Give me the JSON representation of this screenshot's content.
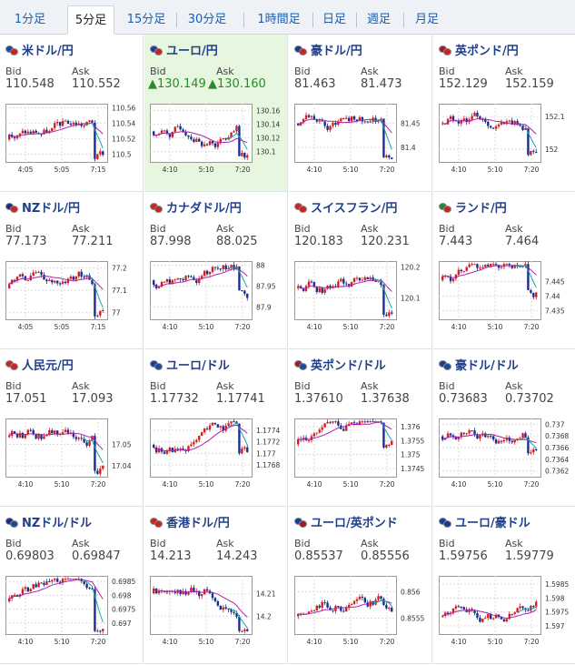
{
  "tabs": [
    "1分足",
    "5分足",
    "15分足",
    "30分足",
    "1時間足",
    "日足",
    "週足",
    "月足"
  ],
  "active_tab": 1,
  "labels": {
    "bid": "Bid",
    "ask": "Ask"
  },
  "up_arrow": "▲",
  "highlight_color": "#e6f6df",
  "pairs": [
    {
      "name": "米ドル/円",
      "flags": [
        "#1a4aa0",
        "#cc2222"
      ],
      "bid": "110.548",
      "ask": "110.552",
      "ticks_x": [
        "4:05",
        "5:05",
        "7:15"
      ],
      "ticks_y": [
        "110.56",
        "110.54",
        "110.52",
        "110.5"
      ],
      "y_min": 110.49,
      "y_max": 110.565,
      "tick_y_values": [
        110.56,
        110.54,
        110.52,
        110.5
      ],
      "seed": 3,
      "drop": 0.95
    },
    {
      "name": "ユーロ/円",
      "flags": [
        "#1a3aa0",
        "#cc2222"
      ],
      "bid": "130.149",
      "ask": "130.160",
      "up": true,
      "ticks_x": [
        "4:10",
        "5:10",
        "7:20"
      ],
      "ticks_y": [
        "130.16",
        "130.14",
        "130.12",
        "130.1"
      ],
      "y_min": 130.085,
      "y_max": 130.17,
      "tick_y_values": [
        130.16,
        130.14,
        130.12,
        130.1
      ],
      "seed": 7,
      "drop": 0.9
    },
    {
      "name": "豪ドル/円",
      "flags": [
        "#1a3a90",
        "#cc2222"
      ],
      "bid": "81.463",
      "ask": "81.473",
      "ticks_x": [
        "4:10",
        "5:10",
        "7:20"
      ],
      "ticks_y": [
        "81.45",
        "81.4"
      ],
      "y_min": 81.37,
      "y_max": 81.49,
      "tick_y_values": [
        81.45,
        81.4
      ],
      "seed": 11,
      "drop": 0.92
    },
    {
      "name": "英ポンド/円",
      "flags": [
        "#a01a2a",
        "#cc2222"
      ],
      "bid": "152.129",
      "ask": "152.159",
      "ticks_x": [
        "4:10",
        "5:10",
        "7:20"
      ],
      "ticks_y": [
        "152.1",
        "152"
      ],
      "y_min": 151.96,
      "y_max": 152.14,
      "tick_y_values": [
        152.1,
        152
      ],
      "seed": 5,
      "drop": 0.88
    },
    {
      "name": "NZドル/円",
      "flags": [
        "#1a2a80",
        "#cc2222"
      ],
      "bid": "77.173",
      "ask": "77.211",
      "ticks_x": [
        "4:05",
        "5:05",
        "7:15"
      ],
      "ticks_y": [
        "77.2",
        "77.1",
        "77"
      ],
      "y_min": 76.97,
      "y_max": 77.23,
      "tick_y_values": [
        77.2,
        77.1,
        77
      ],
      "seed": 13,
      "drop": 0.97
    },
    {
      "name": "カナダドル/円",
      "flags": [
        "#cc2222",
        "#cc2222"
      ],
      "bid": "87.998",
      "ask": "88.025",
      "ticks_x": [
        "4:10",
        "5:10",
        "7:20"
      ],
      "ticks_y": [
        "88",
        "87.95",
        "87.9"
      ],
      "y_min": 87.87,
      "y_max": 88.01,
      "tick_y_values": [
        88,
        87.95,
        87.9
      ],
      "seed": 17,
      "drop": 0.5
    },
    {
      "name": "スイスフラン/円",
      "flags": [
        "#cc2222",
        "#cc2222"
      ],
      "bid": "120.183",
      "ask": "120.231",
      "ticks_x": [
        "4:10",
        "5:10",
        "7:20"
      ],
      "ticks_y": [
        "120.2",
        "120.1"
      ],
      "y_min": 120.03,
      "y_max": 120.22,
      "tick_y_values": [
        120.2,
        120.1
      ],
      "seed": 19,
      "drop": 0.92
    },
    {
      "name": "ランド/円",
      "flags": [
        "#228833",
        "#cc2222"
      ],
      "bid": "7.443",
      "ask": "7.464",
      "ticks_x": [
        "4:10",
        "5:10",
        "7:20"
      ],
      "ticks_y": [
        "7.445",
        "7.44",
        "7.435"
      ],
      "y_min": 7.432,
      "y_max": 7.452,
      "tick_y_values": [
        7.445,
        7.44,
        7.435
      ],
      "seed": 23,
      "drop": 0.5
    },
    {
      "name": "人民元/円",
      "flags": [
        "#cc2222",
        "#cc2222"
      ],
      "bid": "17.051",
      "ask": "17.093",
      "ticks_x": [
        "4:10",
        "5:10",
        "7:20"
      ],
      "ticks_y": [
        "17.05",
        "17.04"
      ],
      "y_min": 17.035,
      "y_max": 17.062,
      "tick_y_values": [
        17.05,
        17.04
      ],
      "seed": 29,
      "drop": 0.9
    },
    {
      "name": "ユーロ/ドル",
      "flags": [
        "#1a3aa0",
        "#1a4aa0"
      ],
      "bid": "1.17732",
      "ask": "1.17741",
      "ticks_x": [
        "4:10",
        "5:10",
        "7:20"
      ],
      "ticks_y": [
        "1.1774",
        "1.1772",
        "1.177",
        "1.1768"
      ],
      "y_min": 1.1766,
      "y_max": 1.1776,
      "tick_y_values": [
        1.1774,
        1.1772,
        1.177,
        1.1768
      ],
      "seed": 31,
      "drop": 0.6
    },
    {
      "name": "英ポンド/ドル",
      "flags": [
        "#a01a2a",
        "#1a4aa0"
      ],
      "bid": "1.37610",
      "ask": "1.37638",
      "ticks_x": [
        "4:10",
        "5:10",
        "7:20"
      ],
      "ticks_y": [
        "1.376",
        "1.3755",
        "1.375",
        "1.3745"
      ],
      "y_min": 1.3742,
      "y_max": 1.3763,
      "tick_y_values": [
        1.376,
        1.3755,
        1.375,
        1.3745
      ],
      "seed": 37,
      "drop": 0.5
    },
    {
      "name": "豪ドル/ドル",
      "flags": [
        "#1a3a90",
        "#1a4aa0"
      ],
      "bid": "0.73683",
      "ask": "0.73702",
      "ticks_x": [
        "4:10",
        "5:10",
        "7:20"
      ],
      "ticks_y": [
        "0.737",
        "0.7368",
        "0.7366",
        "0.7364",
        "0.7362"
      ],
      "y_min": 0.7361,
      "y_max": 0.7371,
      "tick_y_values": [
        0.737,
        0.7368,
        0.7366,
        0.7364,
        0.7362
      ],
      "seed": 41,
      "drop": 0.6
    },
    {
      "name": "NZドル/ドル",
      "flags": [
        "#1a2a80",
        "#1a4aa0"
      ],
      "bid": "0.69803",
      "ask": "0.69847",
      "ticks_x": [
        "4:10",
        "5:10",
        "7:20"
      ],
      "ticks_y": [
        "0.6985",
        "0.698",
        "0.6975",
        "0.697"
      ],
      "y_min": 0.6966,
      "y_max": 0.6987,
      "tick_y_values": [
        0.6985,
        0.698,
        0.6975,
        0.697
      ],
      "seed": 43,
      "drop": 0.95
    },
    {
      "name": "香港ドル/円",
      "flags": [
        "#cc2222",
        "#cc2222"
      ],
      "bid": "14.213",
      "ask": "14.243",
      "ticks_x": [
        "4:10",
        "5:10",
        "7:20"
      ],
      "ticks_y": [
        "14.21",
        "14.2"
      ],
      "y_min": 14.192,
      "y_max": 14.218,
      "tick_y_values": [
        14.21,
        14.2
      ],
      "seed": 47,
      "drop": 0.95
    },
    {
      "name": "ユーロ/英ポンド",
      "flags": [
        "#1a3aa0",
        "#a01a2a"
      ],
      "bid": "0.85537",
      "ask": "0.85556",
      "ticks_x": [
        "4:10",
        "5:10",
        "7:20"
      ],
      "ticks_y": [
        "0.856",
        "0.8555"
      ],
      "y_min": 0.8552,
      "y_max": 0.8563,
      "tick_y_values": [
        0.856,
        0.8555
      ],
      "seed": 53,
      "drop": 0.5
    },
    {
      "name": "ユーロ/豪ドル",
      "flags": [
        "#1a3aa0",
        "#1a3a90"
      ],
      "bid": "1.59756",
      "ask": "1.59779",
      "ticks_x": [
        "4:10",
        "5:10",
        "7:20"
      ],
      "ticks_y": [
        "1.5985",
        "1.598",
        "1.5975",
        "1.597"
      ],
      "y_min": 1.5967,
      "y_max": 1.5988,
      "tick_y_values": [
        1.5985,
        1.598,
        1.5975,
        1.597
      ],
      "seed": 59,
      "drop": 0.6
    }
  ]
}
